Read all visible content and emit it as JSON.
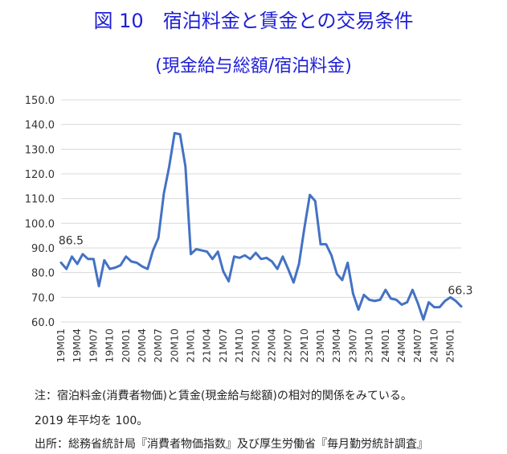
{
  "title": "図 10　宿泊料金と賃金との交易条件",
  "subtitle": "(現金給与総額/宿泊料金)",
  "notes": [
    "注：宿泊料金(消費者物価)と賃金(現金給与総額)の相対的関係をみている。",
    "2019 年平均を 100。",
    "出所：総務省統計局『消費者物価指数』及び厚生労働省『毎月勤労統計調査』"
  ],
  "colors": {
    "title": "#1f1fd6",
    "line": "#4472c4",
    "grid": "#d9d9d9"
  },
  "chart_data": {
    "type": "line",
    "title": "",
    "xlabel": "",
    "ylabel": "",
    "ylim": [
      60,
      150
    ],
    "yticks": [
      "60.0",
      "70.0",
      "80.0",
      "90.0",
      "100.0",
      "110.0",
      "120.0",
      "130.0",
      "140.0",
      "150.0"
    ],
    "grid": true,
    "legend": "none",
    "x": [
      "19M01",
      "19M02",
      "19M03",
      "19M04",
      "19M05",
      "19M06",
      "19M07",
      "19M08",
      "19M09",
      "19M10",
      "19M11",
      "19M12",
      "20M01",
      "20M02",
      "20M03",
      "20M04",
      "20M05",
      "20M06",
      "20M07",
      "20M08",
      "20M09",
      "20M10",
      "20M11",
      "20M12",
      "21M01",
      "21M02",
      "21M03",
      "21M04",
      "21M05",
      "21M06",
      "21M07",
      "21M08",
      "21M09",
      "21M10",
      "21M11",
      "21M12",
      "22M01",
      "22M02",
      "22M03",
      "22M04",
      "22M05",
      "22M06",
      "22M07",
      "22M08",
      "22M09",
      "22M10",
      "22M11",
      "22M12",
      "23M01",
      "23M02",
      "23M03",
      "23M04",
      "23M05",
      "23M06",
      "23M07",
      "23M08",
      "23M09",
      "23M10",
      "23M11",
      "23M12",
      "24M01",
      "24M02",
      "24M03",
      "24M04",
      "24M05",
      "24M06",
      "24M07",
      "24M08",
      "24M09",
      "24M10",
      "24M11",
      "24M12",
      "25M01",
      "25M02",
      "25M03"
    ],
    "xticks": [
      "19M01",
      "19M04",
      "19M07",
      "19M10",
      "20M01",
      "20M04",
      "20M07",
      "20M10",
      "21M01",
      "21M04",
      "21M07",
      "21M10",
      "22M01",
      "22M04",
      "22M07",
      "22M10",
      "23M01",
      "23M04",
      "23M07",
      "23M10",
      "24M01",
      "24M04",
      "24M07",
      "24M10",
      "25M01"
    ],
    "series": [
      {
        "values": [
          84.0,
          81.5,
          86.5,
          83.5,
          87.5,
          85.5,
          85.5,
          74.5,
          85.0,
          81.5,
          82.0,
          83.0,
          86.5,
          84.5,
          84.0,
          82.5,
          81.5,
          89.0,
          94.0,
          112.0,
          123.0,
          136.5,
          136.0,
          123.0,
          87.5,
          89.5,
          89.0,
          88.5,
          85.5,
          88.5,
          80.5,
          76.5,
          86.5,
          86.0,
          87.0,
          85.5,
          88.0,
          85.5,
          86.0,
          84.5,
          81.5,
          86.5,
          81.5,
          76.0,
          83.5,
          98.0,
          111.5,
          109.0,
          91.5,
          91.5,
          87.0,
          79.5,
          77.0,
          84.0,
          71.5,
          65.0,
          71.0,
          69.0,
          68.5,
          69.0,
          73.0,
          69.5,
          69.0,
          67.0,
          68.0,
          73.0,
          67.5,
          61.0,
          68.0,
          66.0,
          66.0,
          68.5,
          70.0,
          68.5,
          66.3
        ]
      }
    ],
    "annotations": [
      {
        "label": "86.5",
        "x": "19M03",
        "y": 86.5
      },
      {
        "label": "66.3",
        "x": "25M03",
        "y": 66.3
      }
    ]
  }
}
